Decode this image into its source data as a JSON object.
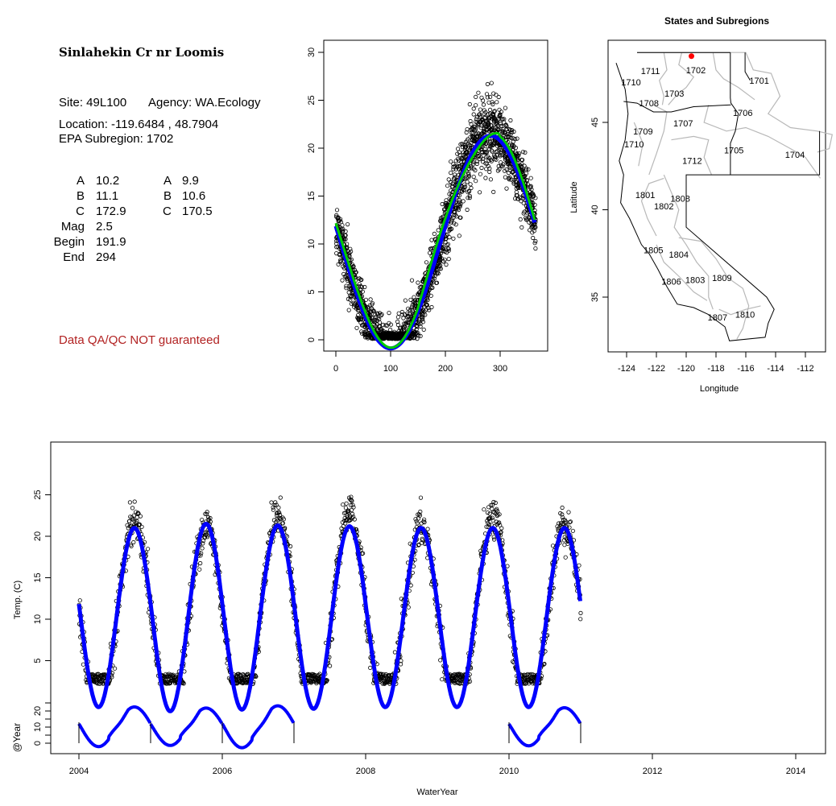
{
  "info": {
    "site_name": "Sinlahekin Cr nr Loomis",
    "site_line": "Site: 49L100",
    "agency_line": "Agency: WA.Ecology",
    "location_line": "Location: -119.6484 , 48.7904",
    "subregion_line": "EPA Subregion: 1702",
    "params": [
      {
        "label": "A",
        "value": "10.2",
        "label2": "A",
        "value2": "9.9"
      },
      {
        "label": "B",
        "value": "11.1",
        "label2": "B",
        "value2": "10.6"
      },
      {
        "label": "C",
        "value": "172.9",
        "label2": "C",
        "value2": "170.5"
      },
      {
        "label": "Mag",
        "value": "2.5"
      },
      {
        "label": "Begin",
        "value": "191.9"
      },
      {
        "label": "End",
        "value": "294"
      }
    ],
    "disclaimer": "Data QA/QC NOT guaranteed",
    "disclaimer_color": "#b22222"
  },
  "chart_data": [
    {
      "type": "scatter",
      "name": "day-of-year",
      "xlim": [
        -5,
        370
      ],
      "ylim": [
        -1.5,
        31
      ],
      "xticks": [
        "0",
        "100",
        "200",
        "300"
      ],
      "yticks": [
        "0",
        "5",
        "10",
        "15",
        "20",
        "25",
        "30"
      ],
      "fit": {
        "A": 10.2,
        "B": 11.1,
        "min_day": 100
      },
      "series": [
        {
          "name": "observations",
          "style": "open-circle",
          "color": "#000000",
          "n_years": 7,
          "noise_sd": 1.4
        },
        {
          "name": "smooth",
          "style": "line",
          "color": "#00cc00"
        },
        {
          "name": "sine-fit",
          "style": "line",
          "color": "#0000ff"
        }
      ]
    },
    {
      "type": "map",
      "title": "States and Subregions",
      "xlabel": "Longitude",
      "ylabel": "Latitude",
      "xticks": [
        "-124",
        "-122",
        "-120",
        "-118",
        "-116",
        "-114",
        "-112"
      ],
      "yticks": [
        "35",
        "40",
        "45"
      ],
      "site": {
        "lon": -119.6484,
        "lat": 48.7904,
        "color": "#ff0000"
      },
      "subregions": [
        {
          "label": "1702",
          "lon": -119.35,
          "lat": 48.0
        },
        {
          "label": "1701",
          "lon": -115.1,
          "lat": 47.4
        },
        {
          "label": "1711",
          "lon": -122.4,
          "lat": 47.95
        },
        {
          "label": "1710",
          "lon": -123.7,
          "lat": 47.3
        },
        {
          "label": "1703",
          "lon": -120.8,
          "lat": 46.65
        },
        {
          "label": "1708",
          "lon": -122.5,
          "lat": 46.1
        },
        {
          "label": "1706",
          "lon": -116.2,
          "lat": 45.55
        },
        {
          "label": "1707",
          "lon": -120.2,
          "lat": 44.95
        },
        {
          "label": "1709",
          "lon": -122.9,
          "lat": 44.5
        },
        {
          "label": "1710",
          "lon": -123.5,
          "lat": 43.75
        },
        {
          "label": "1705",
          "lon": -116.8,
          "lat": 43.4
        },
        {
          "label": "1704",
          "lon": -112.7,
          "lat": 43.15
        },
        {
          "label": "1712",
          "lon": -119.6,
          "lat": 42.8
        },
        {
          "label": "1801",
          "lon": -122.75,
          "lat": 40.85
        },
        {
          "label": "1808",
          "lon": -120.4,
          "lat": 40.65
        },
        {
          "label": "1802",
          "lon": -121.5,
          "lat": 40.2
        },
        {
          "label": "1805",
          "lon": -122.2,
          "lat": 37.7
        },
        {
          "label": "1804",
          "lon": -120.5,
          "lat": 37.45
        },
        {
          "label": "1803",
          "lon": -119.4,
          "lat": 36.0
        },
        {
          "label": "1809",
          "lon": -117.6,
          "lat": 36.1
        },
        {
          "label": "1806",
          "lon": -121.0,
          "lat": 35.9
        },
        {
          "label": "1807",
          "lon": -117.9,
          "lat": 33.85
        },
        {
          "label": "1810",
          "lon": -116.05,
          "lat": 34.0
        }
      ]
    },
    {
      "type": "line",
      "name": "time-series",
      "xlabel": "WaterYear",
      "ylabel": "Temp. (C)",
      "ylabel2": "@Year",
      "xlim": [
        2003.6,
        2014.4
      ],
      "xticks": [
        "2004",
        "2006",
        "2008",
        "2010",
        "2012",
        "2014"
      ],
      "yticks": [
        "5",
        "10",
        "15",
        "20",
        "25"
      ],
      "yticks2": [
        "0",
        "10",
        "20"
      ],
      "years": [
        2004,
        2005,
        2006,
        2007,
        2008,
        2009,
        2010
      ],
      "year_peaks": [
        22.5,
        21.8,
        23.2,
        23.5,
        21.5,
        22.6,
        22.0
      ],
      "year_fit_peaks": [
        21.0,
        21.5,
        21.3,
        21.2,
        21.0,
        21.0,
        21.0
      ],
      "at_year_curves": [
        2004,
        2005,
        2006,
        2010
      ],
      "fit_color": "#0000ff"
    }
  ]
}
